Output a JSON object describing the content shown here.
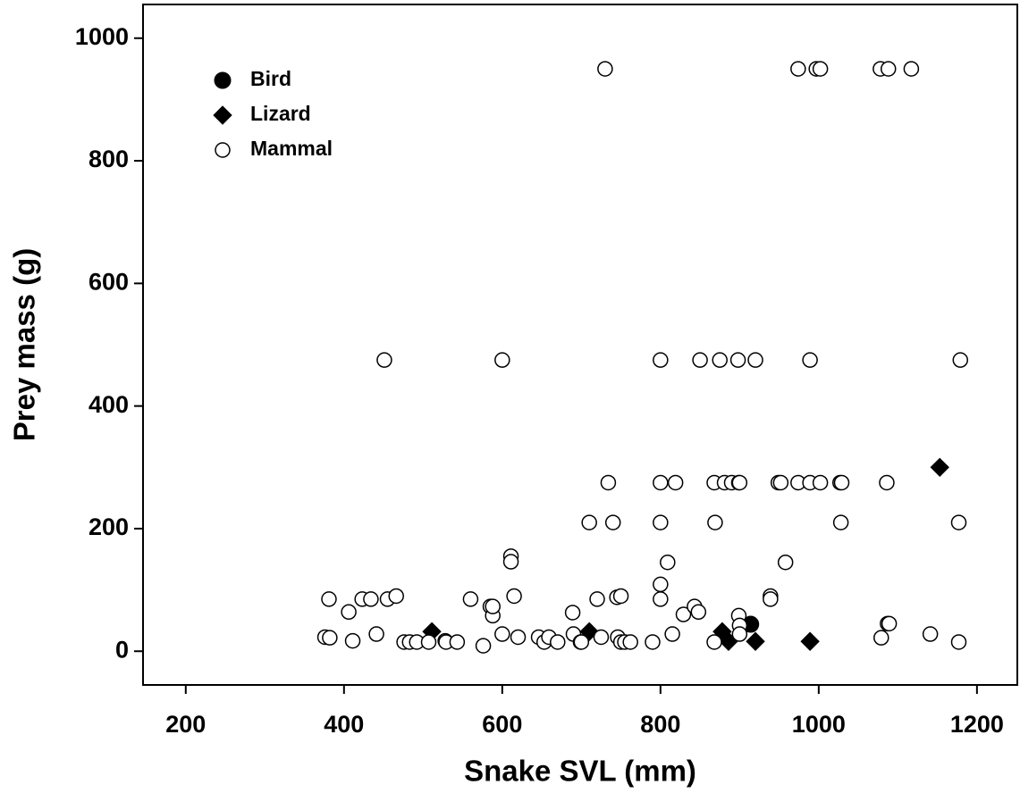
{
  "chart_data": {
    "type": "scatter",
    "xlabel": "Snake SVL (mm)",
    "ylabel": "Prey mass (g)",
    "xlim": [
      146,
      1251
    ],
    "ylim": [
      -55,
      1055
    ],
    "xticks": [
      200,
      400,
      600,
      800,
      1000,
      1200
    ],
    "yticks": [
      0,
      200,
      400,
      600,
      800,
      1000
    ],
    "legend": "upper left",
    "series": [
      {
        "name": "Bird",
        "color": "#000000",
        "marker": "circle",
        "x": [
          914
        ],
        "values": [
          44
        ]
      },
      {
        "name": "Lizard",
        "color": "#000000",
        "marker": "diamond",
        "x": [
          511,
          710,
          878,
          886,
          920,
          989,
          1153
        ],
        "values": [
          32,
          32,
          32,
          16,
          16,
          16,
          300
        ]
      },
      {
        "name": "Mammal",
        "color": "#ffffff",
        "marker": "open-circle",
        "x": [
          730,
          974,
          997,
          1002,
          1078,
          1088,
          1117,
          451,
          600,
          800,
          850,
          875,
          898,
          920,
          989,
          1179,
          734,
          800,
          819,
          868,
          881,
          890,
          899,
          900,
          949,
          952,
          974,
          989,
          1002,
          1027,
          1029,
          1086,
          710,
          740,
          800,
          869,
          1028,
          1177,
          611,
          611,
          809,
          958,
          376,
          382,
          381,
          406,
          411,
          423,
          434,
          441,
          455,
          466,
          476,
          483,
          492,
          507,
          528,
          529,
          543,
          560,
          585,
          588,
          588,
          576,
          600,
          615,
          620,
          646,
          653,
          659,
          670,
          689,
          690,
          699,
          700,
          720,
          725,
          745,
          750,
          746,
          750,
          755,
          762,
          790,
          800,
          800,
          815,
          829,
          843,
          848,
          868,
          899,
          900,
          900,
          939,
          939,
          1079,
          1087,
          1089,
          1141,
          1177
        ],
        "values": [
          950,
          950,
          950,
          950,
          950,
          950,
          950,
          475,
          475,
          475,
          475,
          475,
          475,
          475,
          475,
          475,
          275,
          275,
          275,
          275,
          275,
          275,
          275,
          275,
          275,
          275,
          275,
          275,
          275,
          275,
          275,
          275,
          210,
          210,
          210,
          210,
          210,
          210,
          155,
          146,
          145,
          145,
          23,
          22,
          85,
          64,
          17,
          85,
          85,
          28,
          85,
          90,
          15,
          15,
          15,
          15,
          17,
          15,
          15,
          85,
          73,
          58,
          73,
          9,
          28,
          90,
          23,
          23,
          15,
          23,
          15,
          63,
          28,
          15,
          15,
          85,
          23,
          88,
          90,
          23,
          15,
          15,
          15,
          15,
          85,
          109,
          28,
          60,
          73,
          64,
          15,
          58,
          42,
          28,
          90,
          85,
          22,
          45,
          45,
          28,
          15
        ]
      }
    ]
  }
}
